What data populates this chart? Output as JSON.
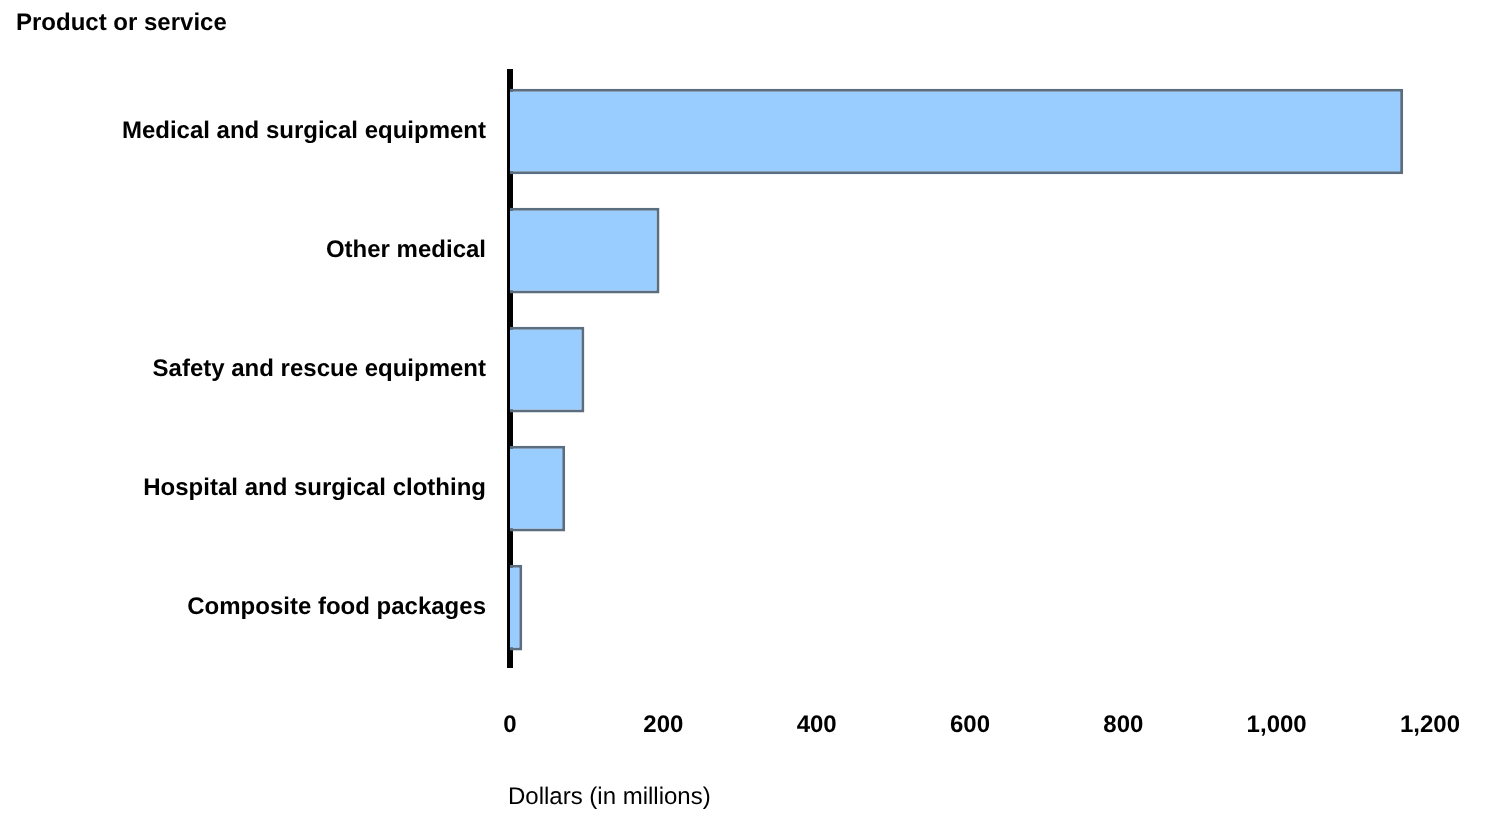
{
  "chart_data": {
    "type": "bar",
    "orientation": "horizontal",
    "ylabel": "Product or service",
    "xlabel": "Dollars (in millions)",
    "categories": [
      "Medical and surgical equipment",
      "Other medical",
      "Safety and rescue equipment",
      "Hospital and surgical clothing",
      "Composite food packages"
    ],
    "values": [
      1165,
      195,
      97,
      72,
      16
    ],
    "color": "#99ccff",
    "xlim": [
      0,
      1200
    ],
    "xticks": [
      0,
      {
        "value": 200,
        "label": "200"
      },
      {
        "value": 400,
        "label": "400"
      },
      {
        "value": 600,
        "label": "600"
      },
      {
        "value": 800,
        "label": "800"
      },
      {
        "value": 1000,
        "label": "1,000"
      },
      {
        "value": 1200,
        "label": "1,200"
      }
    ],
    "grid": false,
    "legend": false
  }
}
